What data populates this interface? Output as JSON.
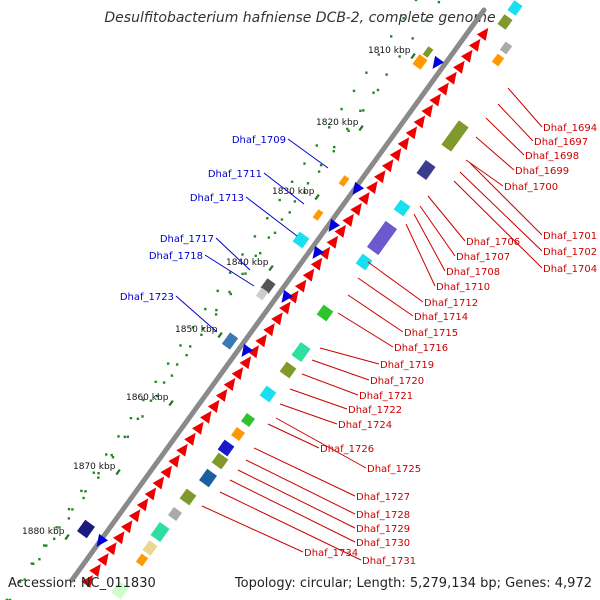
{
  "title": "Desulfitobacterium hafniense DCB-2, complete genome",
  "footer": {
    "accession": "Accession: NC_011830",
    "topology": "Topology: circular; Length: 5,279,134 bp; Genes: 4,972"
  },
  "colors": {
    "backbone": "#8a8a8a",
    "forward_gene": "#ee0000",
    "reverse_label": "#0000cc",
    "forward_label": "#cc0000",
    "tick_dot": "#228822"
  },
  "kbp_ticks": [
    "1810 kbp",
    "1820 kbp",
    "1830 kbp",
    "1840 kbp",
    "1850 kbp",
    "1860 kbp",
    "1870 kbp",
    "1880 kbp"
  ],
  "reverse_labels": [
    "Dhaf_1709",
    "Dhaf_1711",
    "Dhaf_1713",
    "Dhaf_1717",
    "Dhaf_1718",
    "Dhaf_1723"
  ],
  "forward_labels": [
    "Dhaf_1694",
    "Dhaf_1697",
    "Dhaf_1698",
    "Dhaf_1699",
    "Dhaf_1700",
    "Dhaf_1701",
    "Dhaf_1702",
    "Dhaf_1704",
    "Dhaf_1706",
    "Dhaf_1707",
    "Dhaf_1708",
    "Dhaf_1710",
    "Dhaf_1712",
    "Dhaf_1714",
    "Dhaf_1715",
    "Dhaf_1716",
    "Dhaf_1719",
    "Dhaf_1720",
    "Dhaf_1721",
    "Dhaf_1722",
    "Dhaf_1724",
    "Dhaf_1726",
    "Dhaf_1725",
    "Dhaf_1727",
    "Dhaf_1728",
    "Dhaf_1729",
    "Dhaf_1730",
    "Dhaf_1734",
    "Dhaf_1731"
  ]
}
